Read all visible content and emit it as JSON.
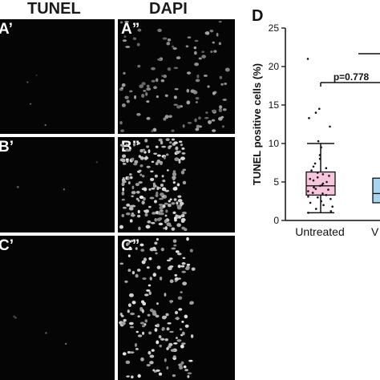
{
  "columns": {
    "tunel": "TUNEL",
    "dapi": "DAPI"
  },
  "panels": [
    {
      "row": "A",
      "tunel_label": "A’",
      "dapi_label": "A”"
    },
    {
      "row": "B",
      "tunel_label": "B’",
      "dapi_label": "B”"
    },
    {
      "row": "C",
      "tunel_label": "C’",
      "dapi_label": "C”"
    }
  ],
  "chart_data": {
    "type": "box",
    "panel_label": "D",
    "title": "",
    "ylabel": "TUNEL positive cells (%)",
    "xlabel": "",
    "ylim": [
      0,
      25
    ],
    "yticks": [
      0,
      5,
      10,
      15,
      20,
      25
    ],
    "grid": false,
    "annotation": "p=0.778",
    "categories": [
      "Untreated",
      "V"
    ],
    "series": [
      {
        "category": "Untreated",
        "fill": "#f7c6dc",
        "whisker_low": 1.0,
        "q1": 3.3,
        "median": 4.5,
        "q3": 6.3,
        "whisker_high": 10.0,
        "points": [
          21.0,
          14.5,
          14.0,
          13.3,
          12.2,
          10.3,
          9.5,
          8.5,
          8.0,
          7.4,
          7.0,
          6.8,
          6.5,
          6.2,
          6.0,
          5.8,
          5.6,
          5.4,
          5.2,
          5.0,
          4.8,
          4.6,
          4.5,
          4.3,
          4.1,
          4.0,
          3.8,
          3.6,
          3.5,
          3.3,
          3.1,
          3.0,
          2.8,
          2.5,
          2.3,
          2.0,
          1.8,
          1.5,
          1.2,
          1.0
        ]
      },
      {
        "category": "V",
        "fill": "#a9d4ee",
        "q1": 2.3,
        "median": 3.5,
        "q3": 5.5
      }
    ]
  }
}
